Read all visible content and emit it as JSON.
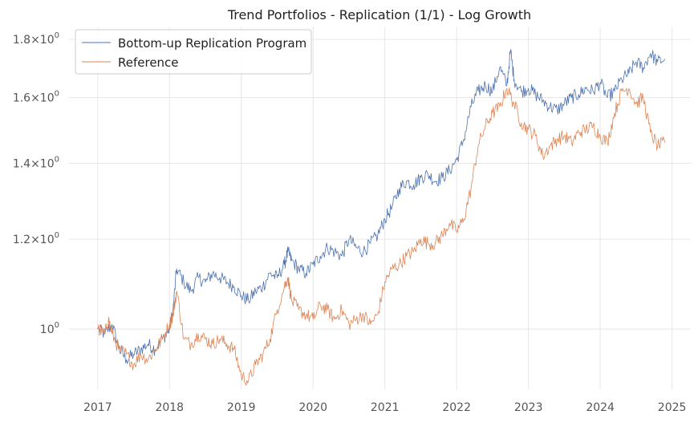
{
  "chart_data": {
    "type": "line",
    "title": "Trend Portfolios - Replication (1/1) - Log Growth",
    "xlabel": "",
    "ylabel": "",
    "yscale": "log",
    "xlim": [
      2016.6,
      2025.25
    ],
    "ylim": [
      0.885,
      1.845
    ],
    "grid": true,
    "legend_position": "top-left",
    "x_ticks": [
      2017,
      2018,
      2019,
      2020,
      2021,
      2022,
      2023,
      2024,
      2025
    ],
    "x_tick_labels": [
      "2017",
      "2018",
      "2019",
      "2020",
      "2021",
      "2022",
      "2023",
      "2024",
      "2025"
    ],
    "y_ticks": [
      1.0,
      1.2,
      1.4,
      1.6,
      1.8
    ],
    "y_tick_labels": [
      {
        "base": "10",
        "exp": "0",
        "prefix": ""
      },
      {
        "base": "10",
        "exp": "0",
        "prefix": "1.2×"
      },
      {
        "base": "10",
        "exp": "0",
        "prefix": "1.4×"
      },
      {
        "base": "10",
        "exp": "0",
        "prefix": "1.6×"
      },
      {
        "base": "10",
        "exp": "0",
        "prefix": "1.8×"
      }
    ],
    "series": [
      {
        "name": "Bottom-up Replication Program",
        "color": "#4c72b0",
        "x": [
          2017.0,
          2017.1,
          2017.2,
          2017.3,
          2017.4,
          2017.5,
          2017.6,
          2017.7,
          2017.8,
          2017.9,
          2018.0,
          2018.05,
          2018.1,
          2018.2,
          2018.3,
          2018.4,
          2018.5,
          2018.6,
          2018.7,
          2018.8,
          2018.9,
          2019.0,
          2019.1,
          2019.2,
          2019.3,
          2019.4,
          2019.5,
          2019.6,
          2019.65,
          2019.7,
          2019.8,
          2019.9,
          2020.0,
          2020.1,
          2020.2,
          2020.3,
          2020.4,
          2020.5,
          2020.6,
          2020.7,
          2020.8,
          2020.9,
          2021.0,
          2021.1,
          2021.2,
          2021.3,
          2021.4,
          2021.5,
          2021.6,
          2021.7,
          2021.8,
          2021.9,
          2022.0,
          2022.1,
          2022.2,
          2022.3,
          2022.4,
          2022.5,
          2022.6,
          2022.7,
          2022.75,
          2022.8,
          2022.9,
          2023.0,
          2023.1,
          2023.2,
          2023.3,
          2023.4,
          2023.5,
          2023.6,
          2023.7,
          2023.8,
          2023.9,
          2024.0,
          2024.1,
          2024.2,
          2024.3,
          2024.4,
          2024.5,
          2024.6,
          2024.7,
          2024.8,
          2024.9
        ],
        "y": [
          1.0,
          0.99,
          1.01,
          0.96,
          0.94,
          0.95,
          0.96,
          0.97,
          0.96,
          0.98,
          1.0,
          1.04,
          1.13,
          1.1,
          1.08,
          1.11,
          1.1,
          1.12,
          1.11,
          1.1,
          1.09,
          1.07,
          1.06,
          1.08,
          1.09,
          1.12,
          1.11,
          1.14,
          1.17,
          1.15,
          1.13,
          1.12,
          1.14,
          1.16,
          1.18,
          1.17,
          1.16,
          1.2,
          1.18,
          1.17,
          1.19,
          1.21,
          1.25,
          1.28,
          1.33,
          1.35,
          1.34,
          1.36,
          1.37,
          1.35,
          1.36,
          1.38,
          1.41,
          1.47,
          1.57,
          1.62,
          1.64,
          1.62,
          1.7,
          1.64,
          1.76,
          1.66,
          1.62,
          1.63,
          1.61,
          1.59,
          1.57,
          1.56,
          1.58,
          1.6,
          1.61,
          1.63,
          1.62,
          1.65,
          1.6,
          1.62,
          1.66,
          1.68,
          1.72,
          1.7,
          1.75,
          1.72,
          1.73
        ]
      },
      {
        "name": "Reference",
        "color": "#dd8452",
        "x": [
          2017.0,
          2017.1,
          2017.15,
          2017.2,
          2017.3,
          2017.4,
          2017.5,
          2017.6,
          2017.7,
          2017.8,
          2017.9,
          2018.0,
          2018.05,
          2018.1,
          2018.2,
          2018.3,
          2018.4,
          2018.5,
          2018.6,
          2018.7,
          2018.8,
          2018.9,
          2019.0,
          2019.1,
          2019.2,
          2019.3,
          2019.4,
          2019.5,
          2019.6,
          2019.65,
          2019.7,
          2019.8,
          2019.9,
          2020.0,
          2020.1,
          2020.2,
          2020.3,
          2020.4,
          2020.5,
          2020.6,
          2020.7,
          2020.8,
          2020.9,
          2021.0,
          2021.1,
          2021.2,
          2021.3,
          2021.4,
          2021.5,
          2021.6,
          2021.7,
          2021.8,
          2021.9,
          2022.0,
          2022.1,
          2022.2,
          2022.3,
          2022.4,
          2022.5,
          2022.6,
          2022.7,
          2022.8,
          2022.9,
          2023.0,
          2023.1,
          2023.2,
          2023.3,
          2023.4,
          2023.5,
          2023.6,
          2023.7,
          2023.8,
          2023.9,
          2024.0,
          2024.1,
          2024.2,
          2024.3,
          2024.4,
          2024.5,
          2024.6,
          2024.7,
          2024.8,
          2024.9
        ],
        "y": [
          1.0,
          0.99,
          1.02,
          0.99,
          0.96,
          0.95,
          0.93,
          0.95,
          0.94,
          0.96,
          0.98,
          1.01,
          1.03,
          1.08,
          0.98,
          0.97,
          0.99,
          0.98,
          0.97,
          0.98,
          0.97,
          0.96,
          0.91,
          0.9,
          0.93,
          0.95,
          0.98,
          1.04,
          1.09,
          1.11,
          1.06,
          1.04,
          1.03,
          1.02,
          1.05,
          1.04,
          1.02,
          1.04,
          1.01,
          1.02,
          1.03,
          1.01,
          1.03,
          1.1,
          1.13,
          1.14,
          1.16,
          1.17,
          1.2,
          1.19,
          1.19,
          1.21,
          1.24,
          1.22,
          1.25,
          1.33,
          1.45,
          1.51,
          1.55,
          1.57,
          1.63,
          1.58,
          1.52,
          1.5,
          1.48,
          1.42,
          1.45,
          1.47,
          1.48,
          1.46,
          1.49,
          1.5,
          1.51,
          1.48,
          1.46,
          1.55,
          1.62,
          1.63,
          1.58,
          1.6,
          1.49,
          1.45,
          1.46
        ]
      }
    ]
  }
}
